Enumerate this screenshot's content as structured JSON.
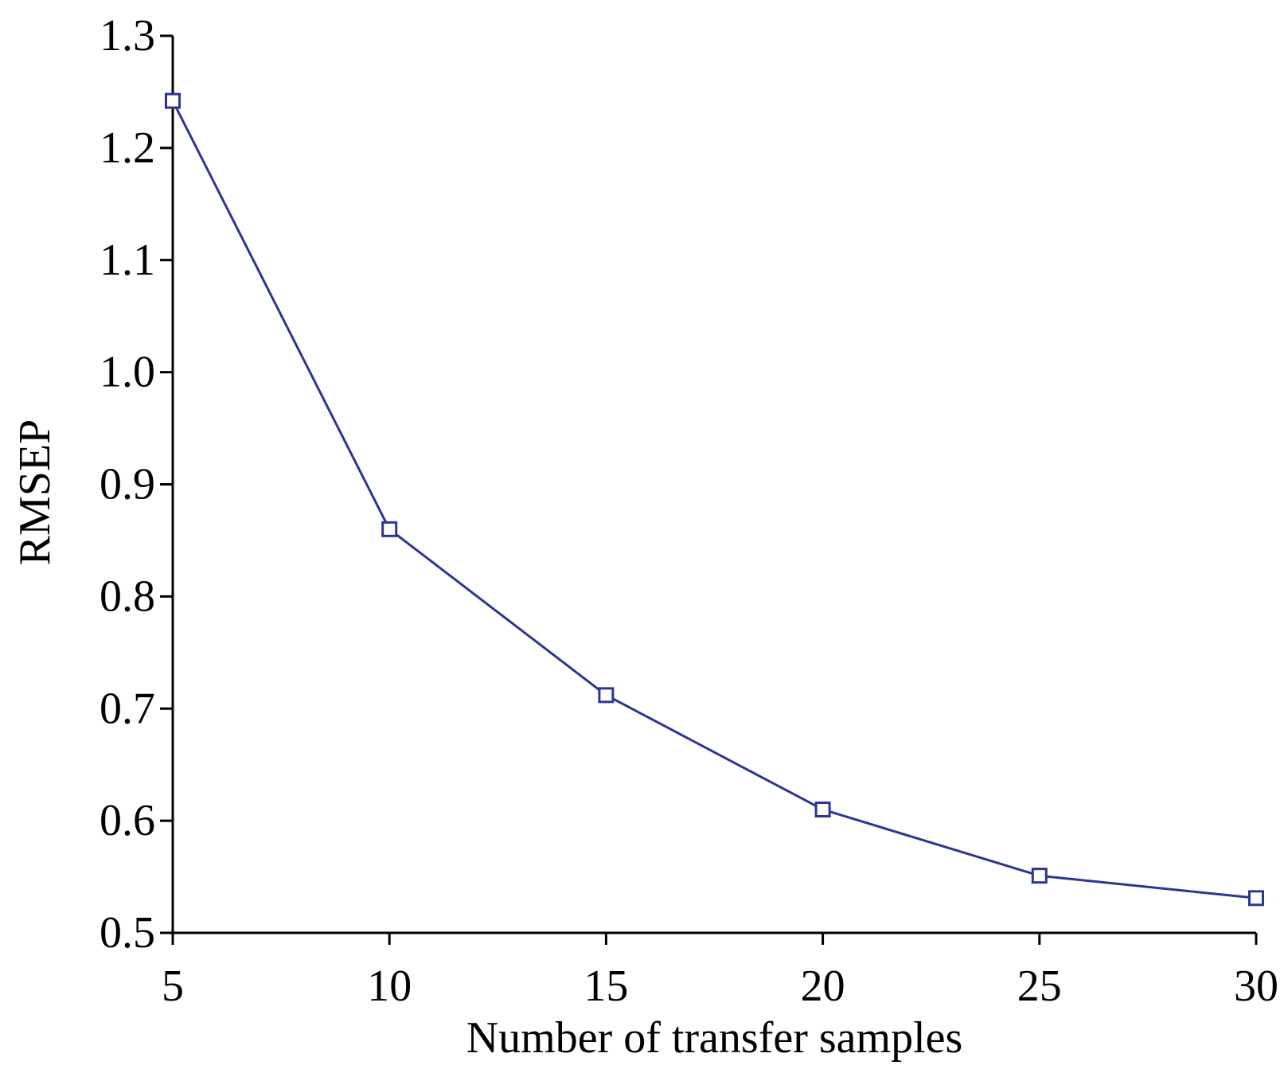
{
  "chart_data": {
    "type": "line",
    "title": "",
    "xlabel": "Number of transfer samples",
    "ylabel": "RMSEP",
    "x": [
      5,
      10,
      15,
      20,
      25,
      30
    ],
    "series": [
      {
        "values": [
          1.242,
          0.86,
          0.712,
          0.61,
          0.551,
          0.531
        ],
        "color": "#2b3595",
        "marker": "square-open"
      }
    ],
    "xlim": [
      5,
      30
    ],
    "ylim": [
      0.5,
      1.3
    ],
    "xticks": [
      "5",
      "10",
      "15",
      "20",
      "25",
      "30"
    ],
    "yticks": [
      "0.5",
      "0.6",
      "0.7",
      "0.8",
      "0.9",
      "1.0",
      "1.1",
      "1.2",
      "1.3"
    ],
    "grid": false,
    "legend": "none"
  }
}
